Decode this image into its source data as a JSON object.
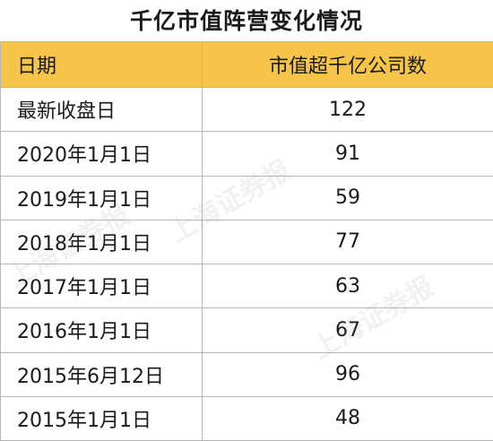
{
  "title": "千亿市值阵营变化情况",
  "chart_data": {
    "type": "table",
    "columns": [
      "日期",
      "市值超千亿公司数"
    ],
    "rows": [
      [
        "最新收盘日",
        "122"
      ],
      [
        "2020年1月1日",
        "91"
      ],
      [
        "2019年1月1日",
        "59"
      ],
      [
        "2018年1月1日",
        "77"
      ],
      [
        "2017年1月1日",
        "63"
      ],
      [
        "2016年1月1日",
        "67"
      ],
      [
        "2015年6月12日",
        "96"
      ],
      [
        "2015年1月1日",
        "48"
      ]
    ]
  },
  "colors": {
    "header_bg": "#f7c44a",
    "border": "#b8b8b8"
  },
  "watermark": "上海证券报"
}
